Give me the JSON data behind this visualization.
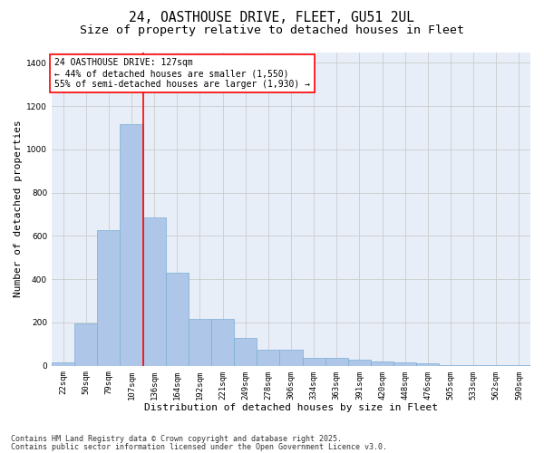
{
  "title_line1": "24, OASTHOUSE DRIVE, FLEET, GU51 2UL",
  "title_line2": "Size of property relative to detached houses in Fleet",
  "xlabel": "Distribution of detached houses by size in Fleet",
  "ylabel": "Number of detached properties",
  "bar_labels": [
    "22sqm",
    "50sqm",
    "79sqm",
    "107sqm",
    "136sqm",
    "164sqm",
    "192sqm",
    "221sqm",
    "249sqm",
    "278sqm",
    "306sqm",
    "334sqm",
    "363sqm",
    "391sqm",
    "420sqm",
    "448sqm",
    "476sqm",
    "505sqm",
    "533sqm",
    "562sqm",
    "590sqm"
  ],
  "bar_values": [
    15,
    195,
    625,
    1115,
    685,
    430,
    215,
    215,
    130,
    75,
    75,
    35,
    35,
    30,
    20,
    15,
    12,
    5,
    3,
    2,
    1
  ],
  "bar_color": "#aec6e8",
  "bar_edgecolor": "#7aafd4",
  "vline_x": 3.5,
  "vline_color": "red",
  "annotation_title": "24 OASTHOUSE DRIVE: 127sqm",
  "annotation_line1": "← 44% of detached houses are smaller (1,550)",
  "annotation_line2": "55% of semi-detached houses are larger (1,930) →",
  "annotation_box_edgecolor": "red",
  "ylim": [
    0,
    1450
  ],
  "yticks": [
    0,
    200,
    400,
    600,
    800,
    1000,
    1200,
    1400
  ],
  "grid_color": "#cccccc",
  "bg_color": "#e8eef8",
  "footnote1": "Contains HM Land Registry data © Crown copyright and database right 2025.",
  "footnote2": "Contains public sector information licensed under the Open Government Licence v3.0.",
  "title_fontsize": 10.5,
  "subtitle_fontsize": 9.5,
  "axis_label_fontsize": 8,
  "tick_fontsize": 6.5,
  "annotation_fontsize": 7,
  "footnote_fontsize": 6
}
